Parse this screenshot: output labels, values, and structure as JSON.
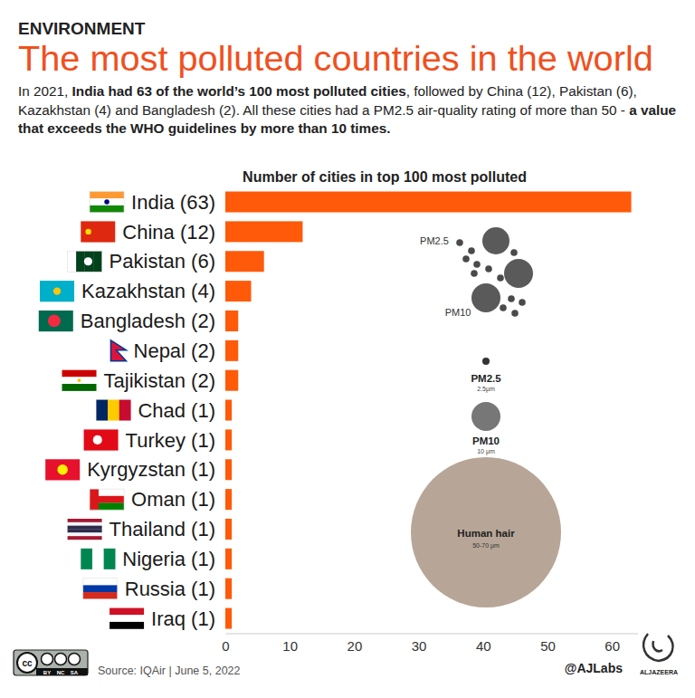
{
  "chart_data": {
    "type": "bar",
    "orientation": "horizontal",
    "title": "The most polluted countries in the world",
    "subtitle": [
      "In 2021, ",
      "India had 63 of the world’s 100 most polluted cities",
      ", followed by China (12), Pakistan (6), Kazakhstan (4) and Bangladesh (2). All these cities had a PM2.5 air-quality rating of more than 50 - ",
      "a value that exceeds the WHO guidelines by more than 10 times."
    ],
    "xlabel": "Number of cities in top 100 most polluted",
    "categories": [
      "India (63)",
      "China (12)",
      "Pakistan (6)",
      "Kazakhstan (4)",
      "Bangladesh (2)",
      "Nepal (2)",
      "Tajikistan (2)",
      "Chad (1)",
      "Turkey (1)",
      "Kyrgyzstan (1)",
      "Oman (1)",
      "Thailand (1)",
      "Nigeria (1)",
      "Russia (1)",
      "Iraq (1)"
    ],
    "values": [
      63,
      12,
      6,
      4,
      2,
      2,
      2,
      1,
      1,
      1,
      1,
      1,
      1,
      1,
      1
    ],
    "color": "#ff5a0a",
    "xlim": [
      0,
      64
    ],
    "xticks": [
      0,
      10,
      20,
      30,
      40,
      50,
      60
    ],
    "grid": false,
    "annotations": [
      "ENVIRONMENT",
      "PM2.5",
      "PM10",
      "PM2.5",
      "2.5μm",
      "PM10",
      "10 μm",
      "Human hair",
      "50-70 μm",
      "Source: IQAir | June 5, 2022",
      "@AJLabs",
      "ALJAZEERA",
      "cc",
      "BY",
      "NC",
      "SA"
    ]
  }
}
